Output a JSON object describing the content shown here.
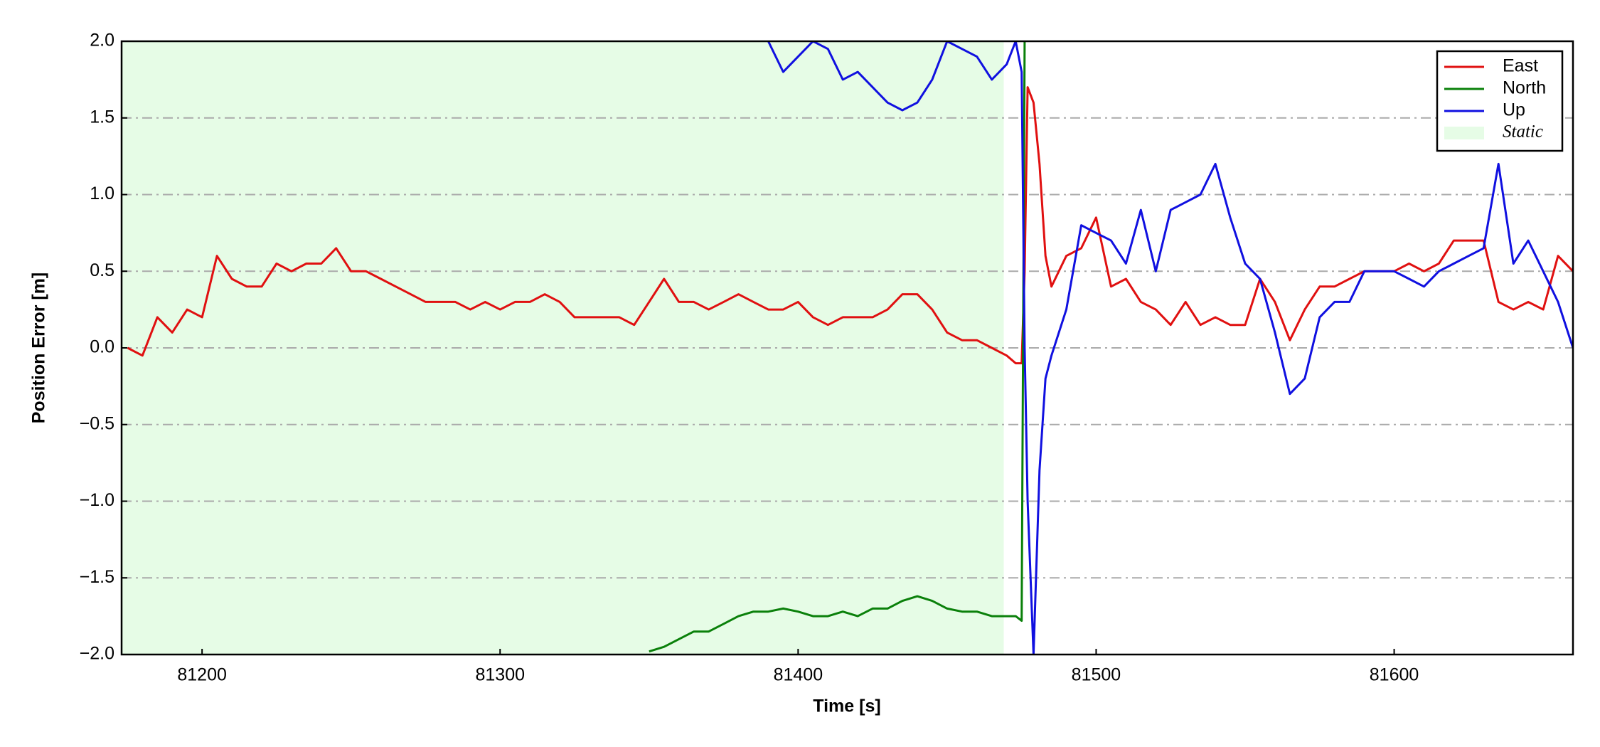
{
  "chart_data": {
    "type": "line",
    "xlabel": "Time [s]",
    "ylabel": "Position Error [m]",
    "xlim": [
      81173,
      81660
    ],
    "ylim": [
      -2,
      2
    ],
    "xticks": [
      81200,
      81300,
      81400,
      81500,
      81600
    ],
    "yticks": [
      {
        "value": -2,
        "label": "−2.0"
      },
      {
        "value": -1.5,
        "label": "−1.5"
      },
      {
        "value": -1,
        "label": "−1.0"
      },
      {
        "value": -0.5,
        "label": "−0.5"
      },
      {
        "value": 0,
        "label": "0.0"
      },
      {
        "value": 0.5,
        "label": "0.5"
      },
      {
        "value": 1,
        "label": "1.0"
      },
      {
        "value": 1.5,
        "label": "1.5"
      },
      {
        "value": 2,
        "label": "2.0"
      }
    ],
    "grid": true,
    "legend": "upper right",
    "shaded_region": {
      "label": "Static",
      "xlim": [
        81173,
        81469
      ],
      "color": "#e6fce6"
    },
    "x": [
      81175,
      81180,
      81185,
      81190,
      81195,
      81200,
      81205,
      81210,
      81215,
      81220,
      81225,
      81230,
      81235,
      81240,
      81245,
      81250,
      81255,
      81260,
      81265,
      81270,
      81275,
      81280,
      81285,
      81290,
      81295,
      81300,
      81305,
      81310,
      81315,
      81320,
      81325,
      81330,
      81335,
      81340,
      81345,
      81350,
      81355,
      81360,
      81365,
      81370,
      81375,
      81380,
      81385,
      81390,
      81395,
      81400,
      81405,
      81410,
      81415,
      81420,
      81425,
      81430,
      81435,
      81440,
      81445,
      81450,
      81455,
      81460,
      81465,
      81470,
      81473,
      81475,
      81476,
      81477,
      81479,
      81481,
      81483,
      81485,
      81490,
      81495,
      81500,
      81505,
      81510,
      81515,
      81520,
      81525,
      81530,
      81535,
      81540,
      81545,
      81550,
      81555,
      81560,
      81565,
      81570,
      81575,
      81580,
      81585,
      81590,
      81595,
      81600,
      81605,
      81610,
      81615,
      81620,
      81625,
      81630,
      81635,
      81640,
      81645,
      81650,
      81655,
      81660
    ],
    "series": [
      {
        "name": "East",
        "color": "#e01010",
        "values": [
          0.0,
          -0.05,
          0.2,
          0.1,
          0.25,
          0.2,
          0.6,
          0.45,
          0.4,
          0.4,
          0.55,
          0.5,
          0.55,
          0.55,
          0.65,
          0.5,
          0.5,
          0.45,
          0.4,
          0.35,
          0.3,
          0.3,
          0.3,
          0.25,
          0.3,
          0.25,
          0.3,
          0.3,
          0.35,
          0.3,
          0.2,
          0.2,
          0.2,
          0.2,
          0.15,
          0.3,
          0.45,
          0.3,
          0.3,
          0.25,
          0.3,
          0.35,
          0.3,
          0.25,
          0.25,
          0.3,
          0.2,
          0.15,
          0.2,
          0.2,
          0.2,
          0.25,
          0.35,
          0.35,
          0.25,
          0.1,
          0.05,
          0.05,
          0.0,
          -0.05,
          -0.1,
          -0.1,
          0.5,
          1.7,
          1.6,
          1.2,
          0.6,
          0.4,
          0.6,
          0.65,
          0.85,
          0.4,
          0.45,
          0.3,
          0.25,
          0.15,
          0.3,
          0.15,
          0.2,
          0.15,
          0.15,
          0.45,
          0.3,
          0.05,
          0.25,
          0.4,
          0.4,
          0.45,
          0.5,
          0.5,
          0.5,
          0.55,
          0.5,
          0.55,
          0.7,
          0.7,
          0.7,
          0.3,
          0.25,
          0.3,
          0.25,
          0.6,
          0.5
        ]
      },
      {
        "name": "North",
        "color": "#0a800a",
        "values": [
          null,
          null,
          null,
          null,
          null,
          null,
          null,
          null,
          null,
          null,
          null,
          null,
          null,
          null,
          null,
          null,
          null,
          null,
          null,
          null,
          null,
          null,
          null,
          null,
          null,
          null,
          null,
          null,
          null,
          null,
          null,
          null,
          null,
          null,
          null,
          -1.98,
          -1.95,
          -1.9,
          -1.85,
          -1.85,
          -1.8,
          -1.75,
          -1.72,
          -1.72,
          -1.7,
          -1.72,
          -1.75,
          -1.75,
          -1.72,
          -1.75,
          -1.7,
          -1.7,
          -1.65,
          -1.62,
          -1.65,
          -1.7,
          -1.72,
          -1.72,
          -1.75,
          -1.75,
          -1.75,
          -1.78,
          2.0,
          null,
          null,
          null,
          null,
          null,
          null,
          null,
          null,
          null,
          null,
          null,
          null,
          null,
          null,
          null,
          null,
          null,
          null,
          null,
          null,
          null,
          null,
          null,
          null,
          null,
          null,
          null,
          null,
          null,
          null,
          null,
          null,
          null,
          null,
          null,
          null,
          null,
          null,
          null,
          null
        ]
      },
      {
        "name": "Up",
        "color": "#1010e0",
        "values": [
          null,
          null,
          null,
          null,
          null,
          null,
          null,
          null,
          null,
          null,
          null,
          null,
          null,
          null,
          null,
          null,
          null,
          null,
          null,
          null,
          null,
          null,
          null,
          null,
          null,
          null,
          null,
          null,
          null,
          null,
          null,
          null,
          null,
          null,
          null,
          null,
          null,
          null,
          null,
          null,
          null,
          null,
          null,
          2.0,
          1.8,
          1.9,
          2.0,
          1.95,
          1.75,
          1.8,
          1.7,
          1.6,
          1.55,
          1.6,
          1.75,
          2.0,
          1.95,
          1.9,
          1.75,
          1.85,
          2.0,
          1.8,
          0.0,
          -1.0,
          -2.0,
          -0.8,
          -0.2,
          -0.05,
          0.25,
          0.8,
          0.75,
          0.7,
          0.55,
          0.9,
          0.5,
          0.9,
          0.95,
          1.0,
          1.2,
          0.85,
          0.55,
          0.45,
          0.1,
          -0.3,
          -0.2,
          0.2,
          0.3,
          0.3,
          0.5,
          0.5,
          0.5,
          0.45,
          0.4,
          0.5,
          0.55,
          0.6,
          0.65,
          1.2,
          0.55,
          0.7,
          0.5,
          0.3,
          0.0
        ]
      }
    ]
  }
}
